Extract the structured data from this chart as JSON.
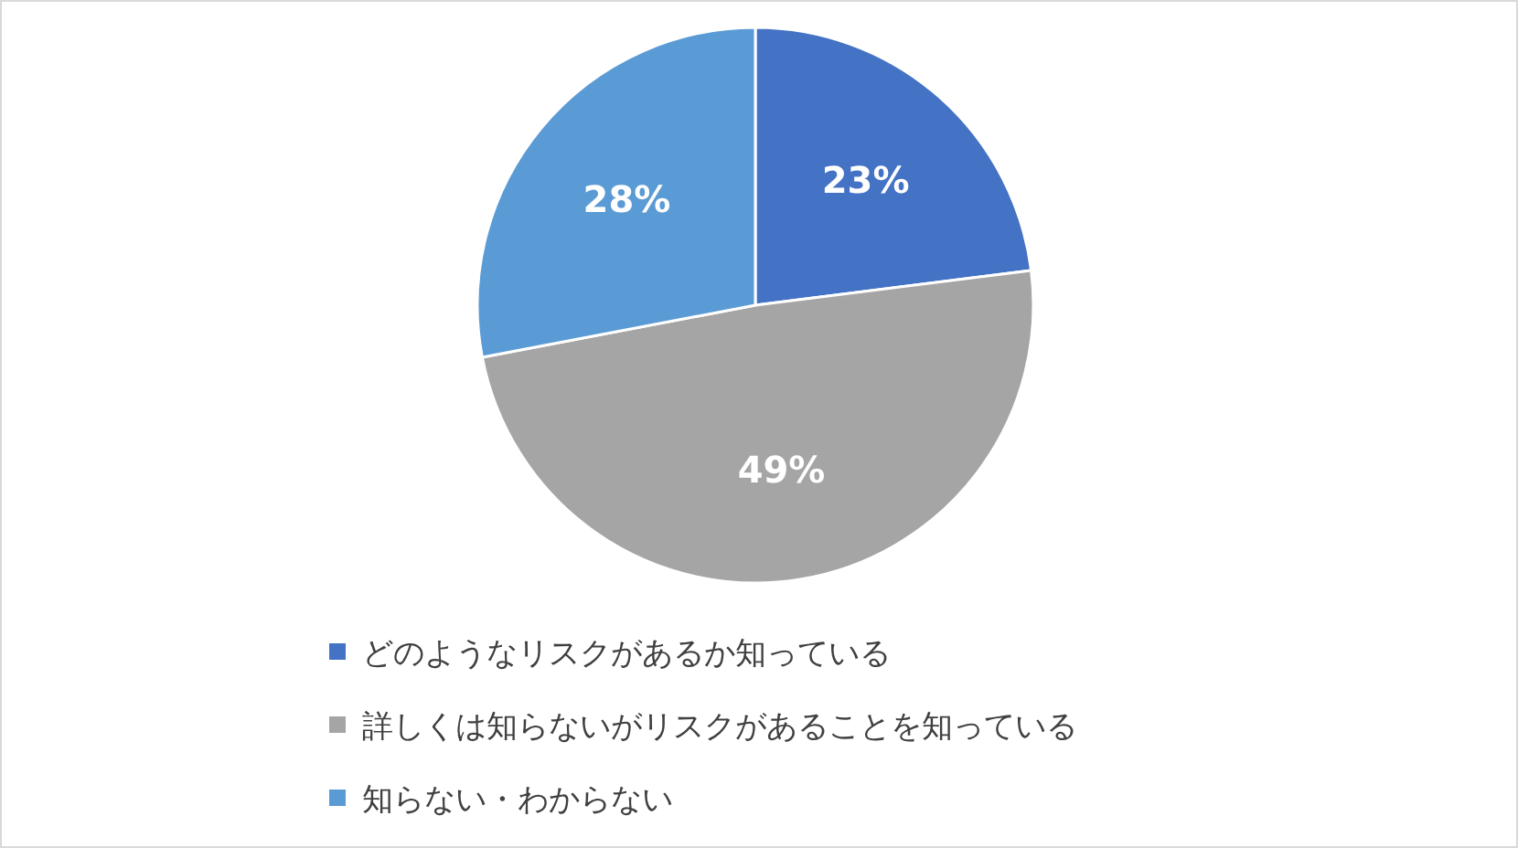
{
  "chart_data": {
    "type": "pie",
    "categories": [
      "どのようなリスクがあるか知っている",
      "詳しくは知らないがリスクがあることを知っている",
      "知らない・わからない"
    ],
    "values": [
      23,
      49,
      28
    ],
    "colors": [
      "#4472c4",
      "#a5a5a5",
      "#5b9bd5"
    ],
    "value_labels": [
      "23%",
      "49%",
      "28%"
    ],
    "legend": "bottom"
  }
}
